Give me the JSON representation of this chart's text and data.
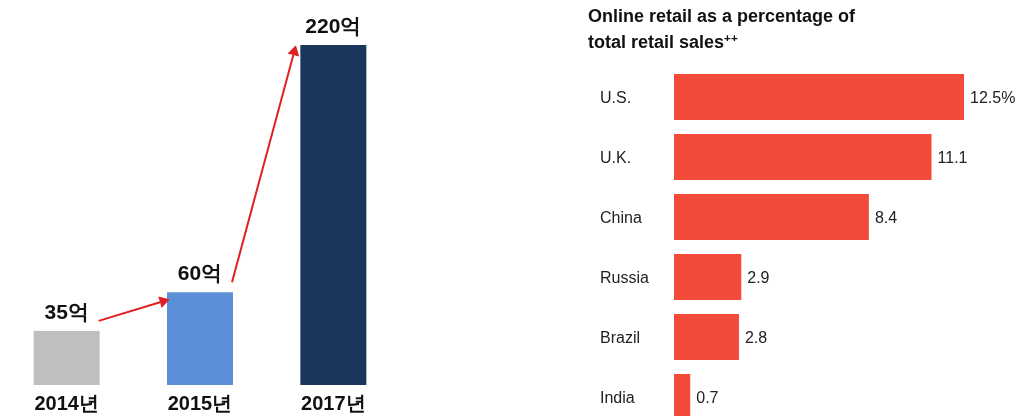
{
  "chart_data": [
    {
      "type": "bar",
      "categories": [
        "2014년",
        "2015년",
        "2017년"
      ],
      "values": [
        35,
        60,
        220
      ],
      "colors": [
        "#bfbfbf",
        "#5b8fd6",
        "#1b365d"
      ],
      "value_labels": [
        "35억",
        "60억",
        "220억"
      ]
    },
    {
      "type": "bar",
      "orientation": "horizontal",
      "title": "Online retail as a percentage of total retail sales$^{++}$",
      "categories": [
        "U.S.",
        "U.K.",
        "China",
        "Russia",
        "Brazil",
        "India"
      ],
      "values": [
        12.5,
        11.1,
        8.4,
        2.9,
        2.8,
        0.7
      ],
      "color": "#f44a3a",
      "value_labels": [
        "12.5%",
        "11.1",
        "8.4",
        "2.9",
        "2.8",
        "0.7"
      ]
    }
  ]
}
